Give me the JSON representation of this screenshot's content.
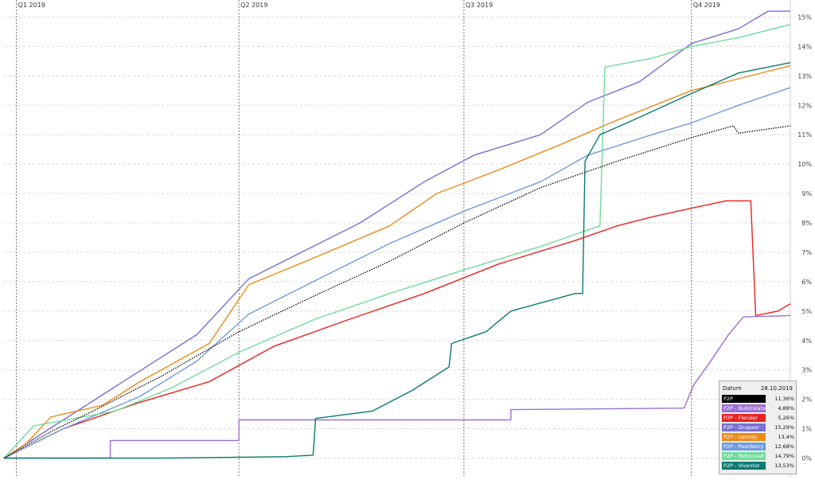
{
  "chart_data": {
    "type": "line",
    "x_range": [
      "2018-12-27",
      "2019-11-10"
    ],
    "quarters": [
      {
        "label": "Q1 2019",
        "date": "2019-01-01"
      },
      {
        "label": "Q2 2019",
        "date": "2019-04-01"
      },
      {
        "label": "Q3 2019",
        "date": "2019-07-01"
      },
      {
        "label": "Q4 2019",
        "date": "2019-10-01"
      }
    ],
    "ylim": [
      -0.5,
      15.5
    ],
    "yticks": [
      0,
      1,
      2,
      3,
      4,
      5,
      6,
      7,
      8,
      9,
      10,
      11,
      12,
      13,
      14,
      15
    ],
    "ytick_labels": [
      "0%",
      "1%",
      "2%",
      "3%",
      "4%",
      "5%",
      "6%",
      "7%",
      "8%",
      "9%",
      "10%",
      "11%",
      "12%",
      "13%",
      "14%",
      "15%"
    ],
    "grid": true,
    "legend_position": "bottom-right",
    "legend": {
      "date_label": "Datum",
      "date_value": "28.10.2019",
      "items": [
        {
          "label": "P2P",
          "value": "11,36%",
          "color": "#000000"
        },
        {
          "label": "P2P - BulkEstate",
          "value": "4,88%",
          "color": "#9b6fd3"
        },
        {
          "label": "P2P - Flender",
          "value": "5,26%",
          "color": "#e8221f"
        },
        {
          "label": "P2P - Grupeer",
          "value": "15,29%",
          "color": "#7a6fd6"
        },
        {
          "label": "P2P - Lenndy",
          "value": "13,4%",
          "color": "#ef8a16"
        },
        {
          "label": "P2P - PeerBerry",
          "value": "12,68%",
          "color": "#6f9be0"
        },
        {
          "label": "P2P - Robo.cash",
          "value": "14,79%",
          "color": "#6fdc9c"
        },
        {
          "label": "P2P - Viventor",
          "value": "13,53%",
          "color": "#0b7a72"
        }
      ]
    },
    "series": [
      {
        "name": "P2P",
        "color": "#000000",
        "dashed": true,
        "points": [
          [
            "2018-12-27",
            0
          ],
          [
            "2019-01-15",
            0.9
          ],
          [
            "2019-02-01",
            1.6
          ],
          [
            "2019-03-01",
            2.8
          ],
          [
            "2019-04-01",
            4.3
          ],
          [
            "2019-05-01",
            5.5
          ],
          [
            "2019-06-01",
            6.7
          ],
          [
            "2019-07-01",
            8.0
          ],
          [
            "2019-08-01",
            9.2
          ],
          [
            "2019-09-01",
            10.1
          ],
          [
            "2019-10-01",
            10.9
          ],
          [
            "2019-10-18",
            11.3
          ],
          [
            "2019-10-20",
            11.05
          ],
          [
            "2019-11-10",
            11.3
          ]
        ]
      },
      {
        "name": "P2P - BulkEstate",
        "color": "#9b6fd3",
        "points": [
          [
            "2018-12-27",
            0
          ],
          [
            "2019-02-08",
            0
          ],
          [
            "2019-02-08",
            0.6
          ],
          [
            "2019-04-01",
            0.6
          ],
          [
            "2019-04-01",
            1.3
          ],
          [
            "2019-07-20",
            1.3
          ],
          [
            "2019-07-20",
            1.65
          ],
          [
            "2019-09-28",
            1.7
          ],
          [
            "2019-10-02",
            2.5
          ],
          [
            "2019-10-08",
            3.2
          ],
          [
            "2019-10-16",
            4.2
          ],
          [
            "2019-10-22",
            4.8
          ],
          [
            "2019-11-10",
            4.85
          ]
        ]
      },
      {
        "name": "P2P - Flender",
        "color": "#e8221f",
        "points": [
          [
            "2018-12-27",
            0
          ],
          [
            "2019-01-20",
            1.0
          ],
          [
            "2019-02-20",
            1.9
          ],
          [
            "2019-03-20",
            2.6
          ],
          [
            "2019-04-15",
            3.8
          ],
          [
            "2019-05-15",
            4.7
          ],
          [
            "2019-06-15",
            5.6
          ],
          [
            "2019-07-15",
            6.6
          ],
          [
            "2019-08-15",
            7.4
          ],
          [
            "2019-09-01",
            7.9
          ],
          [
            "2019-09-15",
            8.2
          ],
          [
            "2019-10-01",
            8.5
          ],
          [
            "2019-10-15",
            8.75
          ],
          [
            "2019-10-25",
            8.75
          ],
          [
            "2019-10-27",
            4.85
          ],
          [
            "2019-11-05",
            5.0
          ],
          [
            "2019-11-10",
            5.25
          ]
        ]
      },
      {
        "name": "P2P - Grupeer",
        "color": "#7a6fd6",
        "points": [
          [
            "2018-12-27",
            0
          ],
          [
            "2019-01-20",
            1.3
          ],
          [
            "2019-02-15",
            2.7
          ],
          [
            "2019-03-15",
            4.2
          ],
          [
            "2019-04-05",
            6.1
          ],
          [
            "2019-05-01",
            7.2
          ],
          [
            "2019-05-20",
            8.0
          ],
          [
            "2019-06-15",
            9.4
          ],
          [
            "2019-07-05",
            10.3
          ],
          [
            "2019-08-01",
            11.0
          ],
          [
            "2019-08-20",
            12.1
          ],
          [
            "2019-09-10",
            12.8
          ],
          [
            "2019-10-01",
            14.1
          ],
          [
            "2019-10-20",
            14.6
          ],
          [
            "2019-11-01",
            15.2
          ],
          [
            "2019-11-10",
            15.2
          ]
        ]
      },
      {
        "name": "P2P - Lenndy",
        "color": "#ef8a16",
        "points": [
          [
            "2018-12-27",
            0
          ],
          [
            "2019-01-05",
            0.5
          ],
          [
            "2019-01-15",
            1.4
          ],
          [
            "2019-02-05",
            1.8
          ],
          [
            "2019-02-20",
            2.6
          ],
          [
            "2019-03-20",
            3.9
          ],
          [
            "2019-04-05",
            5.9
          ],
          [
            "2019-05-01",
            6.8
          ],
          [
            "2019-06-01",
            7.9
          ],
          [
            "2019-06-20",
            9.0
          ],
          [
            "2019-07-15",
            9.8
          ],
          [
            "2019-08-10",
            10.7
          ],
          [
            "2019-09-01",
            11.5
          ],
          [
            "2019-10-01",
            12.5
          ],
          [
            "2019-10-20",
            12.9
          ],
          [
            "2019-11-10",
            13.35
          ]
        ]
      },
      {
        "name": "P2P - PeerBerry",
        "color": "#6f9be0",
        "points": [
          [
            "2018-12-27",
            0
          ],
          [
            "2019-01-20",
            1.0
          ],
          [
            "2019-02-20",
            2.1
          ],
          [
            "2019-03-15",
            3.3
          ],
          [
            "2019-04-05",
            4.9
          ],
          [
            "2019-05-01",
            6.0
          ],
          [
            "2019-06-01",
            7.3
          ],
          [
            "2019-07-01",
            8.4
          ],
          [
            "2019-08-01",
            9.4
          ],
          [
            "2019-08-20",
            10.3
          ],
          [
            "2019-09-15",
            11.0
          ],
          [
            "2019-10-01",
            11.4
          ],
          [
            "2019-10-20",
            12.0
          ],
          [
            "2019-11-10",
            12.6
          ]
        ]
      },
      {
        "name": "P2P - Robo.cash",
        "color": "#6fdc9c",
        "points": [
          [
            "2018-12-27",
            0
          ],
          [
            "2019-01-08",
            1.1
          ],
          [
            "2019-02-10",
            1.6
          ],
          [
            "2019-03-05",
            2.4
          ],
          [
            "2019-04-01",
            3.6
          ],
          [
            "2019-05-01",
            4.7
          ],
          [
            "2019-06-01",
            5.6
          ],
          [
            "2019-07-01",
            6.4
          ],
          [
            "2019-08-01",
            7.2
          ],
          [
            "2019-08-25",
            7.9
          ],
          [
            "2019-08-27",
            13.3
          ],
          [
            "2019-09-15",
            13.6
          ],
          [
            "2019-10-01",
            14.0
          ],
          [
            "2019-10-20",
            14.3
          ],
          [
            "2019-11-10",
            14.75
          ]
        ]
      },
      {
        "name": "P2P - Viventor",
        "color": "#0b7a72",
        "points": [
          [
            "2018-12-27",
            0
          ],
          [
            "2019-03-01",
            0
          ],
          [
            "2019-04-20",
            0.05
          ],
          [
            "2019-05-01",
            0.1
          ],
          [
            "2019-05-02",
            1.35
          ],
          [
            "2019-05-25",
            1.6
          ],
          [
            "2019-06-10",
            2.3
          ],
          [
            "2019-06-25",
            3.1
          ],
          [
            "2019-06-26",
            3.9
          ],
          [
            "2019-07-10",
            4.3
          ],
          [
            "2019-07-20",
            5.0
          ],
          [
            "2019-08-15",
            5.6
          ],
          [
            "2019-08-18",
            5.6
          ],
          [
            "2019-08-19",
            10.1
          ],
          [
            "2019-08-25",
            11.0
          ],
          [
            "2019-09-05",
            11.4
          ],
          [
            "2019-10-01",
            12.4
          ],
          [
            "2019-10-20",
            13.1
          ],
          [
            "2019-11-10",
            13.45
          ]
        ]
      }
    ]
  }
}
